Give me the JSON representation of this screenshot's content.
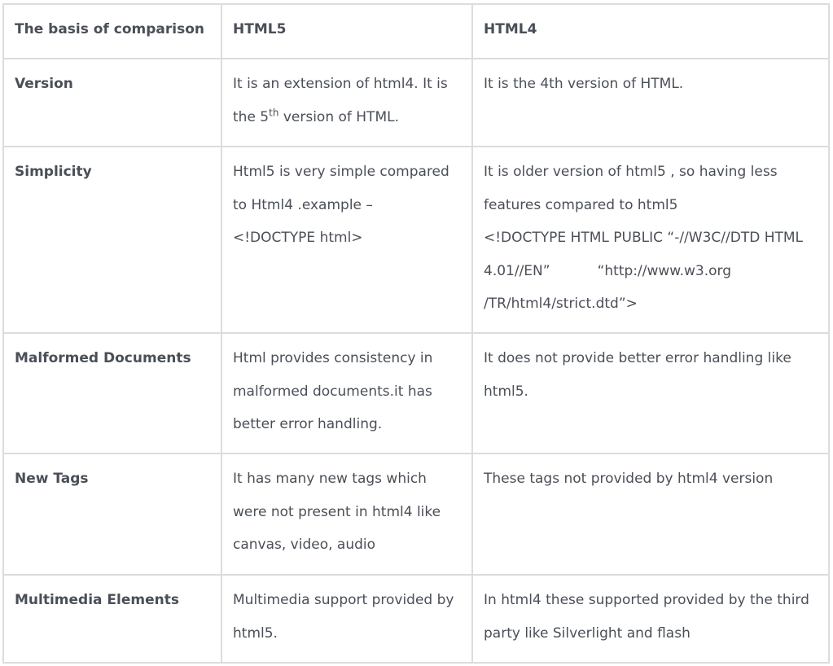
{
  "table": {
    "headers": [
      "The basis of comparison",
      "HTML5",
      "HTML4"
    ],
    "rows": [
      {
        "label": "Version",
        "html5_a": "It is an extension of html4.  It is the 5",
        "html5_sup": "th",
        "html5_b": " version of HTML.",
        "html4": "It is the 4th version of HTML."
      },
      {
        "label": "Simplicity",
        "html5_line1": "Html5 is very simple compared to  Html4 .example –",
        "html5_line2": "<!DOCTYPE html>",
        "html4_line1": "It is older version of html5 , so having less features compared to html5",
        "html4_line2": "<!DOCTYPE HTML PUBLIC “-//W3C//DTD HTML 4.01//EN”",
        "html4_line3": "“http://www.w3.org /TR/html4/strict.dtd”>"
      },
      {
        "label": "Malformed Documents",
        "html5": "Html provides consistency in malformed documents.it has better error handling.",
        "html4": "It does not provide better error handling like html5."
      },
      {
        "label": "New Tags",
        "html5": "It has many new tags which were not present in html4 like canvas, video, audio",
        "html4": "These tags not provided by html4 version"
      },
      {
        "label": "Multimedia Elements",
        "html5": "Multimedia support provided by html5.",
        "html4": "In html4 these supported provided by the third party like Silverlight and flash"
      }
    ]
  }
}
